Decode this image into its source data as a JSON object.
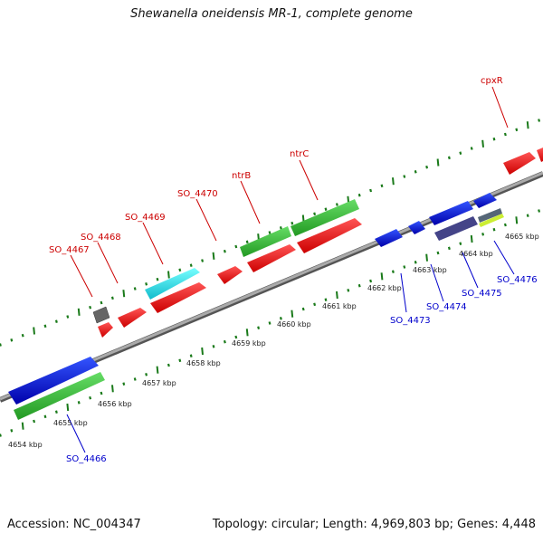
{
  "title": "Shewanella oneidensis MR-1, complete genome",
  "footer": {
    "accession": "Accession: NC_004347",
    "summary": "Topology: circular; Length: 4,969,803 bp; Genes: 4,448"
  },
  "colors": {
    "forward_label": "#cc0000",
    "reverse_label": "#0000cc",
    "backbone": "#8c8c8c",
    "tick": "#1a7a1a"
  },
  "scale_labels": [
    "4654 kbp",
    "4655 kbp",
    "4656 kbp",
    "4657 kbp",
    "4658 kbp",
    "4659 kbp",
    "4660 kbp",
    "4661 kbp",
    "4662 kbp",
    "4663 kbp",
    "4664 kbp",
    "4665 kbp"
  ],
  "forward_gene_labels": [
    "SO_4467",
    "SO_4468",
    "SO_4469",
    "SO_4470",
    "ntrB",
    "ntrC",
    "cpxR"
  ],
  "reverse_gene_labels": [
    "SO_4466",
    "SO_4473",
    "SO_4474",
    "SO_4475",
    "SO_4476"
  ],
  "feature_colors": {
    "cds": "#ee1111",
    "gene": "#33bb33",
    "reverse_cds": "#1111dd",
    "special_cyan": "#22dddd",
    "special_gray": "#666666",
    "special_purple": "#444488",
    "special_yellow": "#ccee33"
  }
}
